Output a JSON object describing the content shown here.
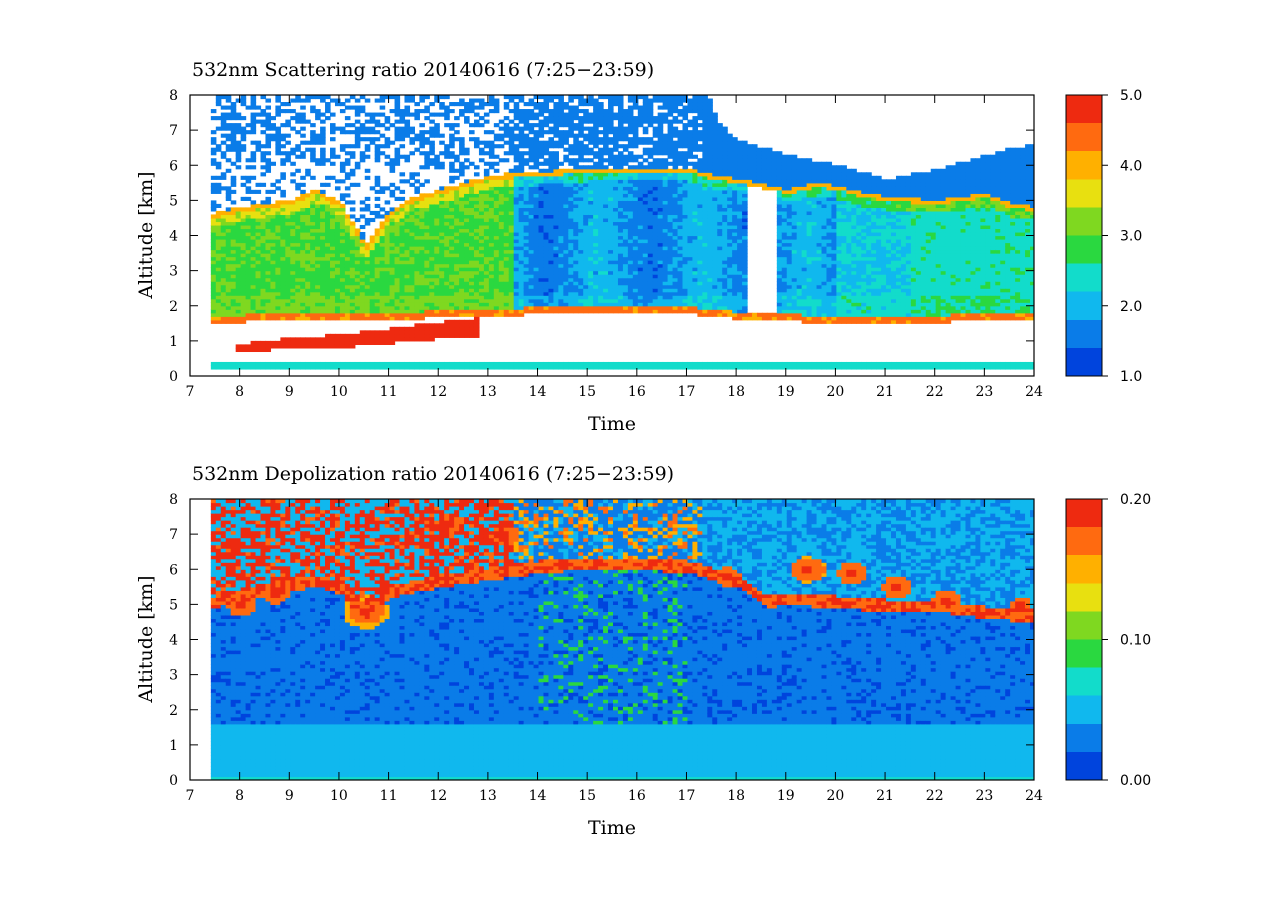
{
  "chart_data": [
    {
      "type": "heatmap",
      "title": "532nm Scattering ratio  20140616 (7:25−23:59)",
      "xlabel": "Time",
      "ylabel": "Altitude [km]",
      "xlim": [
        7,
        24
      ],
      "ylim": [
        0,
        8
      ],
      "xticks": [
        "7",
        "8",
        "9",
        "10",
        "11",
        "12",
        "13",
        "14",
        "15",
        "16",
        "17",
        "18",
        "19",
        "20",
        "21",
        "22",
        "23",
        "24"
      ],
      "yticks": [
        "0",
        "1",
        "2",
        "3",
        "4",
        "5",
        "6",
        "7",
        "8"
      ],
      "colorbar": {
        "range": [
          1.0,
          5.0
        ],
        "tick_labels": [
          "5.0",
          "4.0",
          "3.0",
          "2.0",
          "1.0"
        ],
        "colors": [
          "#0044dd",
          "#0a7ce8",
          "#10b8ee",
          "#12dccb",
          "#2ad840",
          "#7fd820",
          "#e8e010",
          "#ffb000",
          "#ff6a10",
          "#ee2a10"
        ]
      },
      "data_start_time": 7.42,
      "features": {
        "aerosol_layer_top_km": [
          [
            7.42,
            4.5
          ],
          [
            8,
            4.7
          ],
          [
            8.5,
            4.8
          ],
          [
            9,
            4.9
          ],
          [
            9.5,
            5.2
          ],
          [
            10,
            4.8
          ],
          [
            10.5,
            3.6
          ],
          [
            11,
            4.6
          ],
          [
            11.5,
            5.0
          ],
          [
            12,
            5.2
          ],
          [
            12.5,
            5.4
          ],
          [
            13,
            5.6
          ],
          [
            14,
            5.7
          ],
          [
            15,
            5.8
          ],
          [
            16,
            5.8
          ],
          [
            17,
            5.8
          ],
          [
            17.5,
            5.6
          ],
          [
            18,
            5.5
          ],
          [
            19,
            5.2
          ],
          [
            19.6,
            5.4
          ],
          [
            20,
            5.3
          ],
          [
            20.5,
            5.1
          ],
          [
            21,
            5.0
          ],
          [
            22,
            4.9
          ],
          [
            23,
            5.1
          ],
          [
            23.5,
            4.8
          ],
          [
            24,
            4.7
          ]
        ],
        "boundary_layer_km": [
          [
            7.42,
            1.65
          ],
          [
            9,
            1.7
          ],
          [
            10,
            1.75
          ],
          [
            11,
            1.75
          ],
          [
            12,
            1.78
          ],
          [
            13,
            1.82
          ],
          [
            14,
            1.9
          ],
          [
            15,
            1.92
          ],
          [
            16,
            1.93
          ],
          [
            17,
            1.9
          ],
          [
            18,
            1.75
          ],
          [
            19,
            1.7
          ],
          [
            20,
            1.6
          ],
          [
            21,
            1.6
          ],
          [
            22,
            1.65
          ],
          [
            23,
            1.72
          ],
          [
            24,
            1.75
          ]
        ],
        "cloud_band_km": [
          [
            8,
            0.8
          ],
          [
            9,
            0.95
          ],
          [
            10,
            1.0
          ],
          [
            11,
            1.15
          ],
          [
            12,
            1.3
          ],
          [
            12.7,
            1.4
          ]
        ],
        "cloud_top_km": [
          [
            17.4,
            8.0
          ],
          [
            17.6,
            7.2
          ],
          [
            18,
            6.7
          ],
          [
            19,
            6.3
          ],
          [
            20,
            6.0
          ],
          [
            20.5,
            5.8
          ],
          [
            21,
            5.6
          ],
          [
            22,
            5.9
          ],
          [
            23,
            6.3
          ],
          [
            23.5,
            6.5
          ],
          [
            24,
            6.6
          ]
        ]
      }
    },
    {
      "type": "heatmap",
      "title": "532nm Depolization ratio  20140616 (7:25−23:59)",
      "xlabel": "Time",
      "ylabel": "Altitude [km]",
      "xlim": [
        7,
        24
      ],
      "ylim": [
        0,
        8
      ],
      "xticks": [
        "7",
        "8",
        "9",
        "10",
        "11",
        "12",
        "13",
        "14",
        "15",
        "16",
        "17",
        "18",
        "19",
        "20",
        "21",
        "22",
        "23",
        "24"
      ],
      "yticks": [
        "0",
        "1",
        "2",
        "3",
        "4",
        "5",
        "6",
        "7",
        "8"
      ],
      "colorbar": {
        "range": [
          0.0,
          0.2
        ],
        "tick_labels": [
          "0.20",
          "0.10",
          "0.00"
        ],
        "colors": [
          "#0044dd",
          "#0a7ce8",
          "#10b8ee",
          "#12dccb",
          "#2ad840",
          "#7fd820",
          "#e8e010",
          "#ffb000",
          "#ff6a10",
          "#ee2a10"
        ]
      },
      "data_start_time": 7.42,
      "features": {
        "cirrus_base_km": [
          [
            7.42,
            5.0
          ],
          [
            8,
            5.2
          ],
          [
            8.6,
            5.4
          ],
          [
            9.5,
            5.6
          ],
          [
            10,
            5.4
          ],
          [
            10.5,
            4.6
          ],
          [
            11,
            5.3
          ],
          [
            12,
            5.6
          ],
          [
            13,
            5.8
          ],
          [
            14,
            6.0
          ],
          [
            15,
            6.1
          ],
          [
            16,
            6.1
          ],
          [
            17,
            6.0
          ],
          [
            18,
            5.6
          ],
          [
            18.6,
            5.0
          ],
          [
            19,
            5.1
          ],
          [
            20,
            5.0
          ],
          [
            21,
            4.9
          ],
          [
            22,
            4.9
          ],
          [
            23,
            4.7
          ],
          [
            24,
            4.6
          ]
        ],
        "depol_hotspots": [
          [
            8.0,
            5.0,
            0.3
          ],
          [
            8.7,
            5.3,
            0.25
          ],
          [
            10.5,
            4.8,
            0.45
          ],
          [
            12.2,
            7.3,
            0.3
          ],
          [
            13.3,
            7.0,
            0.3
          ],
          [
            17.8,
            5.8,
            0.25
          ],
          [
            19.4,
            6.0,
            0.35
          ],
          [
            20.3,
            5.9,
            0.3
          ],
          [
            21.2,
            5.5,
            0.3
          ],
          [
            22.2,
            5.1,
            0.3
          ],
          [
            23.7,
            5.0,
            0.2
          ]
        ]
      }
    }
  ]
}
